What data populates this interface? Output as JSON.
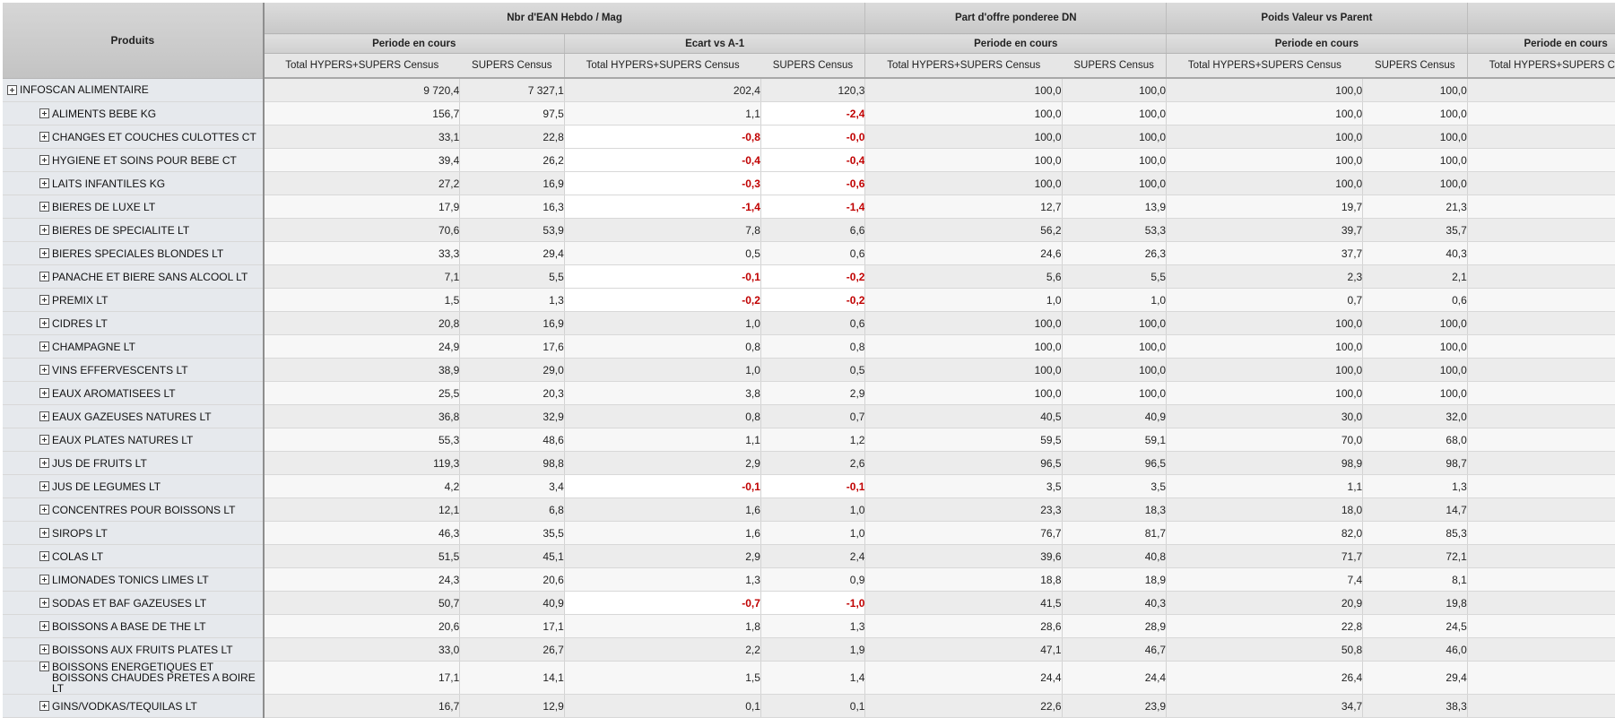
{
  "header": {
    "products_label": "Produits",
    "groups": [
      {
        "label": "Nbr d'EAN Hebdo / Mag"
      },
      {
        "label": "Part d'offre ponderee DN"
      },
      {
        "label": "Poids Valeur vs Parent"
      },
      {
        "label": ""
      }
    ],
    "periods": [
      {
        "label": "Periode en cours"
      },
      {
        "label": "Ecart vs A-1"
      },
      {
        "label": "Periode en cours"
      },
      {
        "label": "Periode en cours"
      },
      {
        "label": "Periode en cours"
      }
    ],
    "columns": [
      "Total HYPERS+SUPERS Census",
      "SUPERS Census",
      "Total HYPERS+SUPERS Census",
      "SUPERS Census",
      "Total HYPERS+SUPERS Census",
      "SUPERS Census",
      "Total HYPERS+SUPERS Census",
      "SUPERS Census",
      "Total HYPERS+SUPERS Census"
    ]
  },
  "rows": [
    {
      "label": "INFOSCAN ALIMENTAIRE",
      "level": 0,
      "values": [
        "9 720,4",
        "7 327,1",
        "202,4",
        "120,3",
        "100,0",
        "100,0",
        "100,0",
        "100,0",
        ""
      ]
    },
    {
      "label": "ALIMENTS BEBE KG",
      "level": 1,
      "values": [
        "156,7",
        "97,5",
        "1,1",
        "-2,4",
        "100,0",
        "100,0",
        "100,0",
        "100,0",
        ""
      ]
    },
    {
      "label": "CHANGES ET COUCHES CULOTTES CT",
      "level": 1,
      "values": [
        "33,1",
        "22,8",
        "-0,8",
        "-0,0",
        "100,0",
        "100,0",
        "100,0",
        "100,0",
        ""
      ]
    },
    {
      "label": "HYGIENE ET SOINS POUR BEBE CT",
      "level": 1,
      "values": [
        "39,4",
        "26,2",
        "-0,4",
        "-0,4",
        "100,0",
        "100,0",
        "100,0",
        "100,0",
        ""
      ]
    },
    {
      "label": "LAITS INFANTILES KG",
      "level": 1,
      "values": [
        "27,2",
        "16,9",
        "-0,3",
        "-0,6",
        "100,0",
        "100,0",
        "100,0",
        "100,0",
        ""
      ]
    },
    {
      "label": "BIERES DE LUXE LT",
      "level": 1,
      "values": [
        "17,9",
        "16,3",
        "-1,4",
        "-1,4",
        "12,7",
        "13,9",
        "19,7",
        "21,3",
        ""
      ]
    },
    {
      "label": "BIERES DE SPECIALITE LT",
      "level": 1,
      "values": [
        "70,6",
        "53,9",
        "7,8",
        "6,6",
        "56,2",
        "53,3",
        "39,7",
        "35,7",
        ""
      ]
    },
    {
      "label": "BIERES SPECIALES BLONDES LT",
      "level": 1,
      "values": [
        "33,3",
        "29,4",
        "0,5",
        "0,6",
        "24,6",
        "26,3",
        "37,7",
        "40,3",
        ""
      ]
    },
    {
      "label": "PANACHE ET BIERE SANS ALCOOL LT",
      "level": 1,
      "values": [
        "7,1",
        "5,5",
        "-0,1",
        "-0,2",
        "5,6",
        "5,5",
        "2,3",
        "2,1",
        ""
      ]
    },
    {
      "label": "PREMIX LT",
      "level": 1,
      "values": [
        "1,5",
        "1,3",
        "-0,2",
        "-0,2",
        "1,0",
        "1,0",
        "0,7",
        "0,6",
        ""
      ]
    },
    {
      "label": "CIDRES LT",
      "level": 1,
      "values": [
        "20,8",
        "16,9",
        "1,0",
        "0,6",
        "100,0",
        "100,0",
        "100,0",
        "100,0",
        ""
      ]
    },
    {
      "label": "CHAMPAGNE LT",
      "level": 1,
      "values": [
        "24,9",
        "17,6",
        "0,8",
        "0,8",
        "100,0",
        "100,0",
        "100,0",
        "100,0",
        ""
      ]
    },
    {
      "label": "VINS EFFERVESCENTS LT",
      "level": 1,
      "values": [
        "38,9",
        "29,0",
        "1,0",
        "0,5",
        "100,0",
        "100,0",
        "100,0",
        "100,0",
        ""
      ]
    },
    {
      "label": "EAUX AROMATISEES LT",
      "level": 1,
      "values": [
        "25,5",
        "20,3",
        "3,8",
        "2,9",
        "100,0",
        "100,0",
        "100,0",
        "100,0",
        ""
      ]
    },
    {
      "label": "EAUX GAZEUSES NATURES LT",
      "level": 1,
      "values": [
        "36,8",
        "32,9",
        "0,8",
        "0,7",
        "40,5",
        "40,9",
        "30,0",
        "32,0",
        ""
      ]
    },
    {
      "label": "EAUX PLATES NATURES LT",
      "level": 1,
      "values": [
        "55,3",
        "48,6",
        "1,1",
        "1,2",
        "59,5",
        "59,1",
        "70,0",
        "68,0",
        ""
      ]
    },
    {
      "label": "JUS DE FRUITS LT",
      "level": 1,
      "values": [
        "119,3",
        "98,8",
        "2,9",
        "2,6",
        "96,5",
        "96,5",
        "98,9",
        "98,7",
        ""
      ]
    },
    {
      "label": "JUS DE LEGUMES LT",
      "level": 1,
      "values": [
        "4,2",
        "3,4",
        "-0,1",
        "-0,1",
        "3,5",
        "3,5",
        "1,1",
        "1,3",
        ""
      ]
    },
    {
      "label": "CONCENTRES POUR BOISSONS LT",
      "level": 1,
      "values": [
        "12,1",
        "6,8",
        "1,6",
        "1,0",
        "23,3",
        "18,3",
        "18,0",
        "14,7",
        ""
      ]
    },
    {
      "label": "SIROPS LT",
      "level": 1,
      "values": [
        "46,3",
        "35,5",
        "1,6",
        "1,0",
        "76,7",
        "81,7",
        "82,0",
        "85,3",
        ""
      ]
    },
    {
      "label": "COLAS LT",
      "level": 1,
      "values": [
        "51,5",
        "45,1",
        "2,9",
        "2,4",
        "39,6",
        "40,8",
        "71,7",
        "72,1",
        ""
      ]
    },
    {
      "label": "LIMONADES TONICS LIMES LT",
      "level": 1,
      "values": [
        "24,3",
        "20,6",
        "1,3",
        "0,9",
        "18,8",
        "18,9",
        "7,4",
        "8,1",
        ""
      ]
    },
    {
      "label": "SODAS ET BAF GAZEUSES LT",
      "level": 1,
      "values": [
        "50,7",
        "40,9",
        "-0,7",
        "-1,0",
        "41,5",
        "40,3",
        "20,9",
        "19,8",
        ""
      ]
    },
    {
      "label": "BOISSONS A BASE DE THE LT",
      "level": 1,
      "values": [
        "20,6",
        "17,1",
        "1,8",
        "1,3",
        "28,6",
        "28,9",
        "22,8",
        "24,5",
        ""
      ]
    },
    {
      "label": "BOISSONS AUX FRUITS PLATES LT",
      "level": 1,
      "values": [
        "33,0",
        "26,7",
        "2,2",
        "1,9",
        "47,1",
        "46,7",
        "50,8",
        "46,0",
        ""
      ]
    },
    {
      "label": "BOISSONS ENERGETIQUES ET BOISSONS CHAUDES PRETES A BOIRE LT",
      "level": 1,
      "tall": true,
      "values": [
        "17,1",
        "14,1",
        "1,5",
        "1,4",
        "24,4",
        "24,4",
        "26,4",
        "29,4",
        ""
      ]
    },
    {
      "label": "GINS/VODKAS/TEQUILAS LT",
      "level": 1,
      "values": [
        "16,7",
        "12,9",
        "0,1",
        "0,1",
        "22,6",
        "23,9",
        "34,7",
        "38,3",
        ""
      ]
    }
  ],
  "colors": {
    "negative": "#c00000",
    "row_header_bg": "#e6e9ed"
  }
}
